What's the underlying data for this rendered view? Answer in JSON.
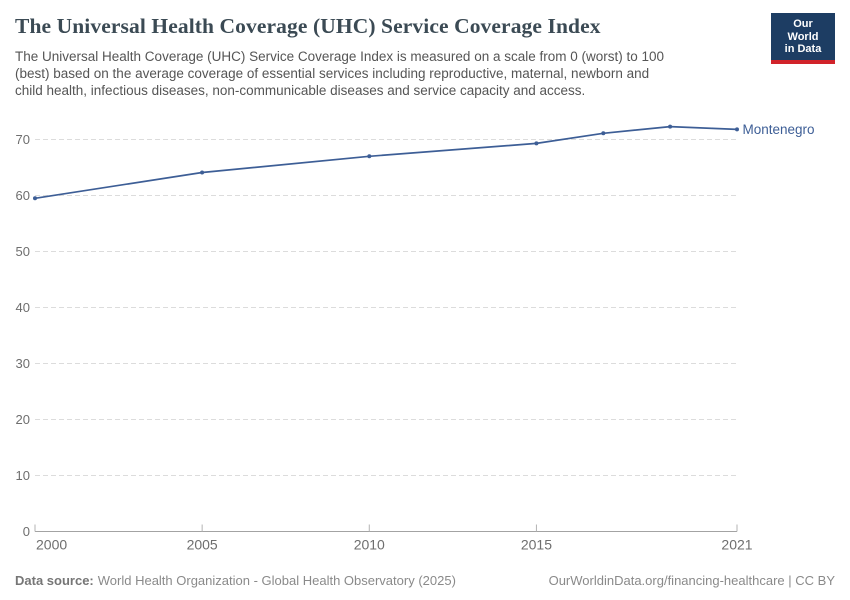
{
  "header": {
    "title": "The Universal Health Coverage (UHC) Service Coverage Index",
    "subtitle_lines": [
      "The Universal Health Coverage (UHC) Service Coverage Index is measured on a scale from 0 (worst) to 100",
      "(best) based on the average coverage of essential services including reproductive, maternal, newborn and",
      "child health, infectious diseases, non-communicable diseases and service capacity and access."
    ],
    "logo": {
      "line1": "Our World",
      "line2": "in Data"
    }
  },
  "chart_data": {
    "type": "line",
    "title": "The Universal Health Coverage (UHC) Service Coverage Index",
    "xlabel": "",
    "ylabel": "",
    "xlim": [
      2000,
      2021
    ],
    "ylim": [
      0,
      75
    ],
    "xticks": [
      2000,
      2005,
      2010,
      2015,
      2021
    ],
    "yticks": [
      0,
      10,
      20,
      30,
      40,
      50,
      60,
      70
    ],
    "grid": "horizontal-dashed",
    "legend_position": "end-of-line",
    "series": [
      {
        "name": "Montenegro",
        "color": "#3d5e96",
        "x": [
          2000,
          2005,
          2010,
          2015,
          2017,
          2019,
          2021
        ],
        "values": [
          59.5,
          64.1,
          67.0,
          69.3,
          71.1,
          72.3,
          71.8
        ]
      }
    ]
  },
  "footer": {
    "source_label": "Data source:",
    "source_text": "World Health Organization - Global Health Observatory (2025)",
    "link_text": "OurWorldinData.org/financing-healthcare",
    "license_text": " | CC BY"
  },
  "colors": {
    "line": "#3d5e96",
    "grid": "#dcdcdc",
    "axis": "#a3a3a3",
    "tick_label": "#6e6e6e",
    "title": "#3b4a54",
    "subtitle": "#555555",
    "footer_text": "#8a8a8a",
    "logo_bg": "#1d3d63",
    "logo_stripe": "#d1232a"
  }
}
